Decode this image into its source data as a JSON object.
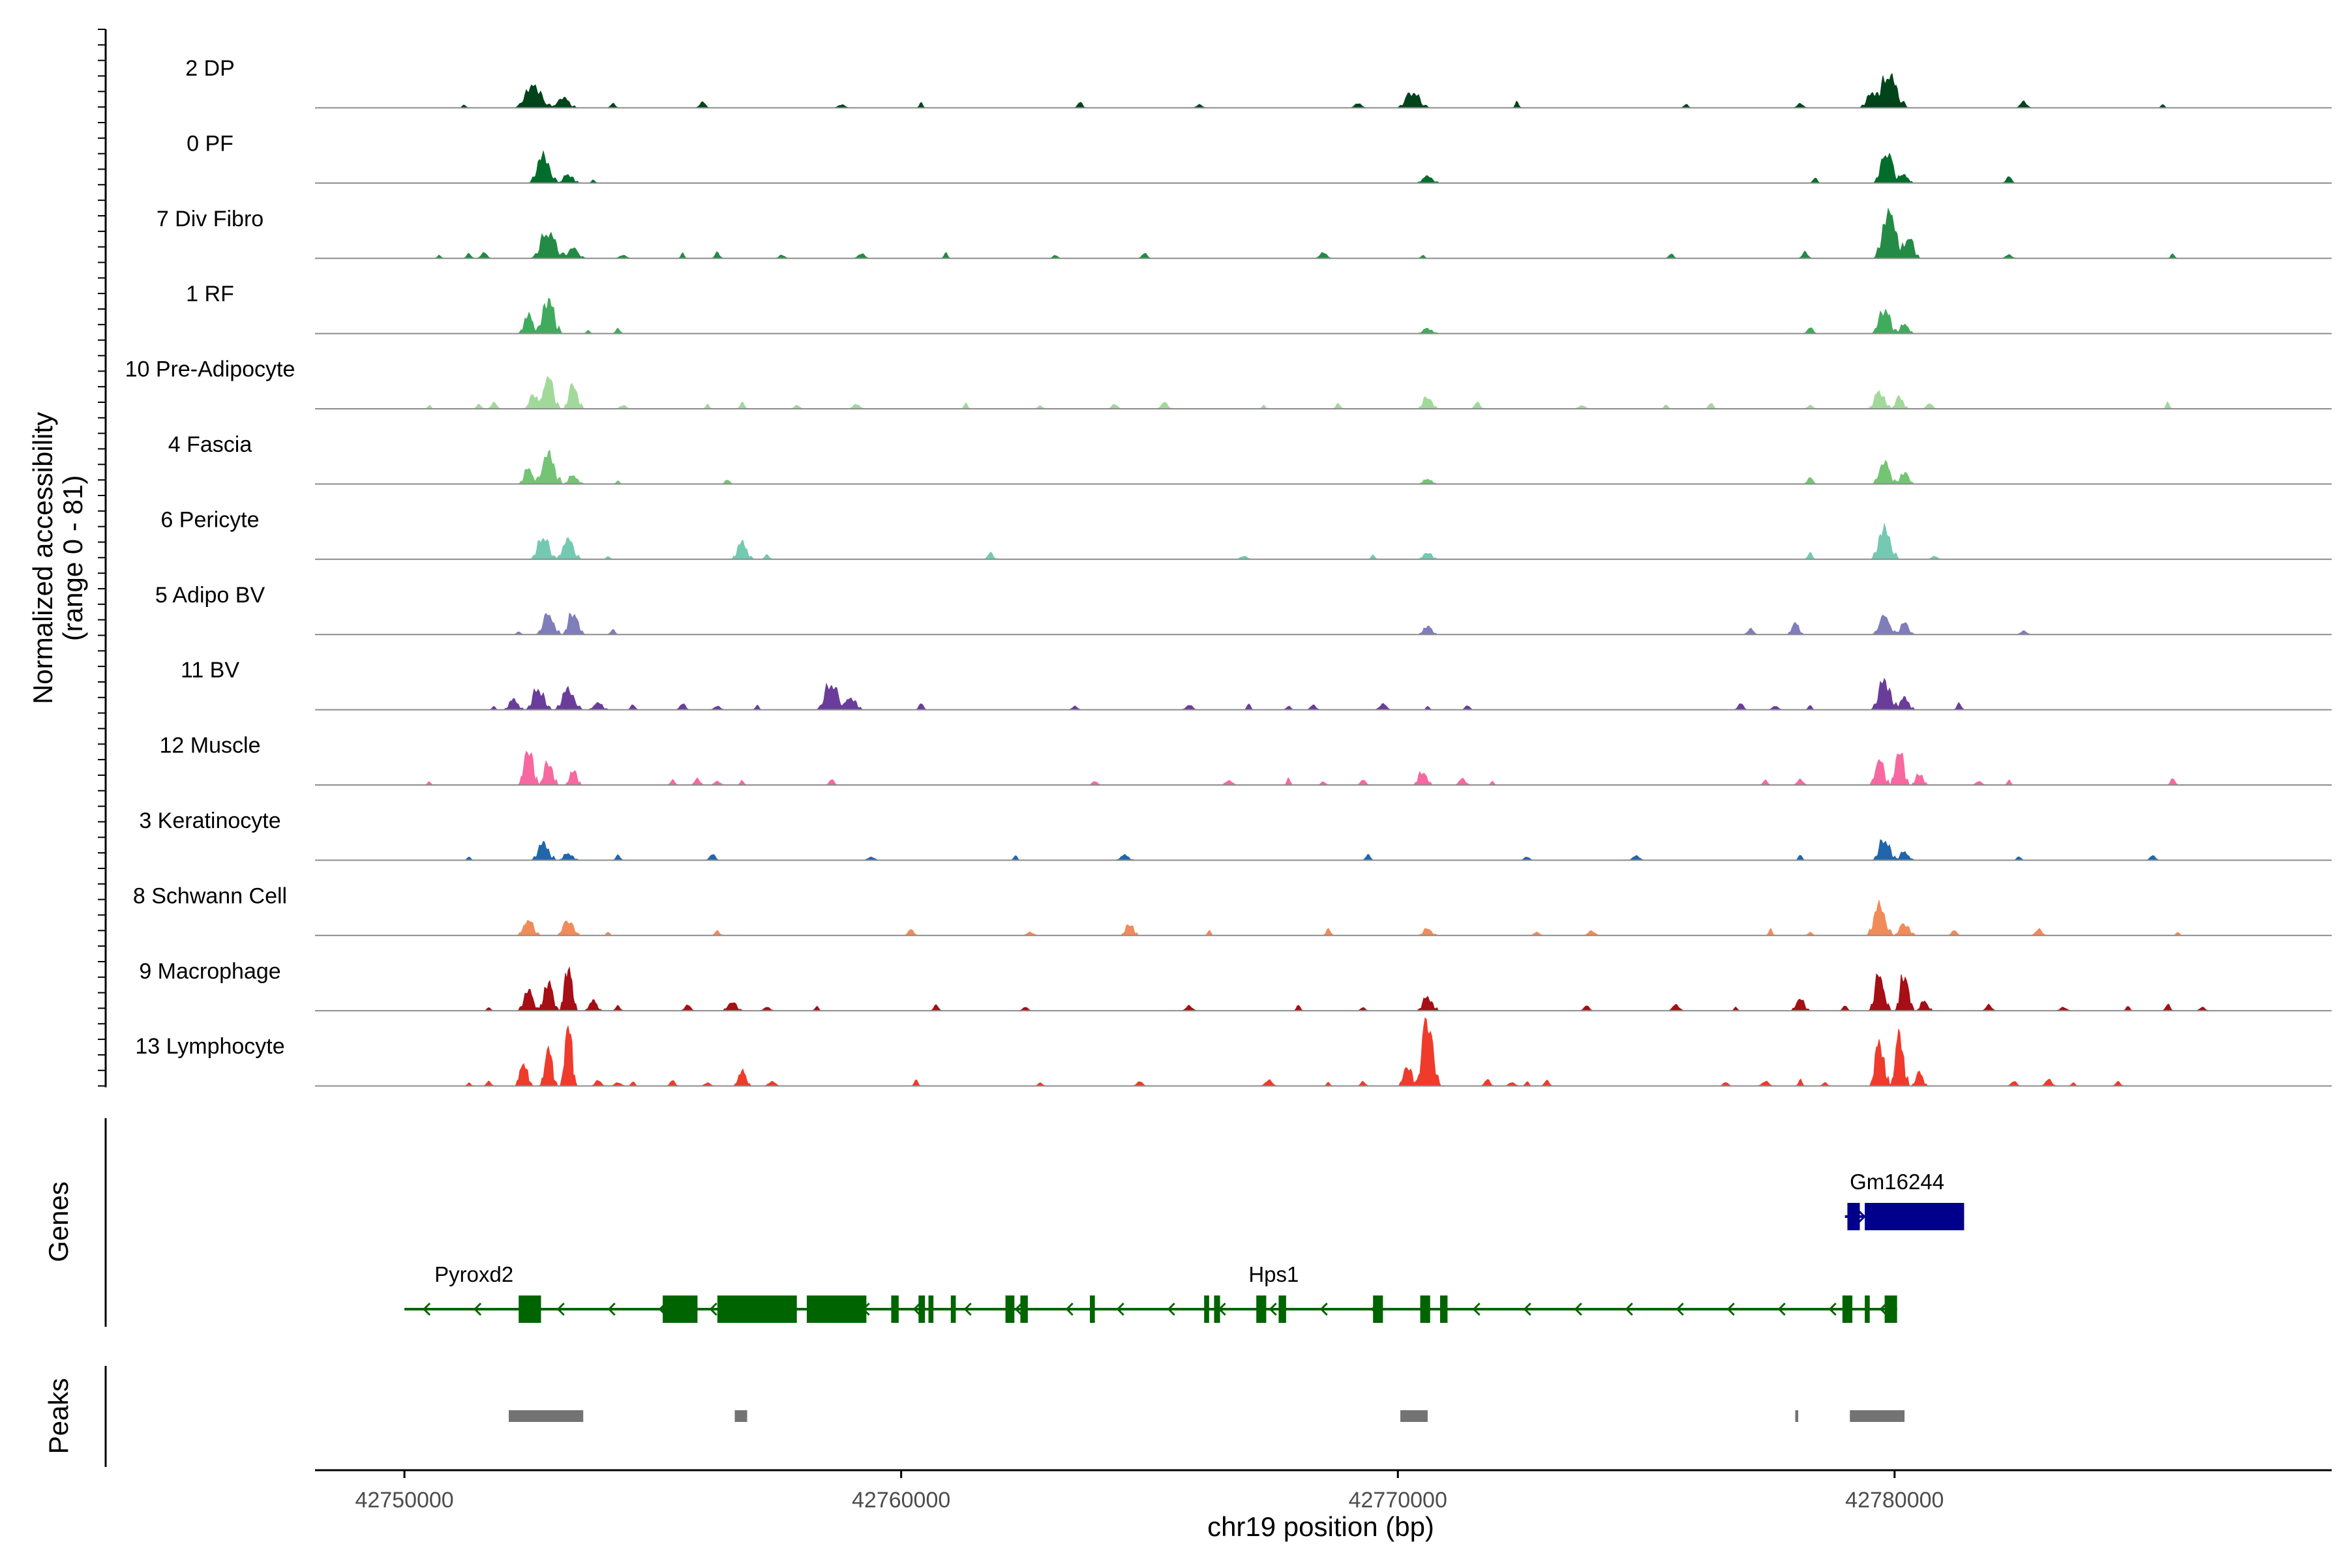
{
  "chart_data": {
    "type": "area",
    "description_free": true,
    "y_axis_label_line1": "Normalized accessibility",
    "y_axis_label_line2": "(range 0 - 81)",
    "y_range": [
      0,
      81
    ],
    "x_axis_label": "chr19 position (bp)",
    "x_range": [
      42748200,
      42788800
    ],
    "x_ticks": [
      42750000,
      42760000,
      42770000,
      42780000
    ],
    "x_tick_labels": [
      "42750000",
      "42760000",
      "42770000",
      "42780000"
    ],
    "genes_panel_label": "Genes",
    "peaks_panel_label": "Peaks",
    "series": [
      {
        "name": "2 DP",
        "color": "#00441B",
        "peaks": [
          [
            42752600,
            13,
            260
          ],
          [
            42753200,
            6,
            180
          ],
          [
            42770300,
            9,
            220
          ],
          [
            42779900,
            19,
            240
          ],
          [
            42779550,
            8,
            180
          ]
        ],
        "bumps": [
          42751200,
          42754200,
          42756000,
          42758800,
          42760400,
          42763600,
          42766000,
          42769200,
          42772400,
          42775800,
          42778100,
          42782600,
          42785400
        ]
      },
      {
        "name": "0 PF",
        "color": "#006D2C",
        "peaks": [
          [
            42752800,
            16,
            200
          ],
          [
            42753300,
            5,
            150
          ],
          [
            42770600,
            4,
            160
          ],
          [
            42779850,
            18,
            190
          ],
          [
            42780200,
            5,
            120
          ]
        ],
        "bumps": [
          42753800,
          42778400,
          42782300
        ]
      },
      {
        "name": "7 Div Fibro",
        "color": "#238B45",
        "peaks": [
          [
            42752900,
            15,
            240
          ],
          [
            42753400,
            6,
            160
          ],
          [
            42779900,
            27,
            220
          ],
          [
            42780300,
            12,
            140
          ]
        ],
        "bumps": [
          42750700,
          42751300,
          42751600,
          42754400,
          42755600,
          42756300,
          42757600,
          42759200,
          42760900,
          42763100,
          42764900,
          42768500,
          42770500,
          42775500,
          42778200,
          42782300,
          42785600
        ]
      },
      {
        "name": "1 RF",
        "color": "#41AB5D",
        "peaks": [
          [
            42752900,
            20,
            180
          ],
          [
            42752500,
            11,
            140
          ],
          [
            42770600,
            3,
            140
          ],
          [
            42779800,
            14,
            180
          ],
          [
            42780200,
            6,
            120
          ]
        ],
        "bumps": [
          42753700,
          42754300,
          42778300
        ]
      },
      {
        "name": "10 Pre-Adipocyte",
        "color": "#A1D99B",
        "peaks": [
          [
            42752900,
            19,
            160
          ],
          [
            42753400,
            14,
            140
          ],
          [
            42752600,
            9,
            120
          ],
          [
            42770600,
            7,
            140
          ],
          [
            42779700,
            10,
            160
          ],
          [
            42780100,
            7,
            120
          ]
        ],
        "bumps": [
          42750500,
          42751500,
          42751800,
          42754400,
          42756100,
          42756800,
          42757900,
          42759100,
          42761300,
          42762800,
          42764300,
          42765300,
          42767300,
          42768800,
          42771600,
          42773700,
          42775400,
          42776300,
          42778300,
          42780700,
          42785500
        ]
      },
      {
        "name": "4 Fascia",
        "color": "#74C476",
        "peaks": [
          [
            42752900,
            18,
            190
          ],
          [
            42752500,
            9,
            140
          ],
          [
            42753400,
            5,
            140
          ],
          [
            42770600,
            3,
            130
          ],
          [
            42779800,
            13,
            170
          ],
          [
            42780200,
            7,
            130
          ]
        ],
        "bumps": [
          42754300,
          42756500,
          42778300
        ]
      },
      {
        "name": "6 Pericyte",
        "color": "#74C9B3",
        "peaks": [
          [
            42752800,
            13,
            180
          ],
          [
            42753300,
            12,
            170
          ],
          [
            42756800,
            10,
            150
          ],
          [
            42770600,
            4,
            130
          ],
          [
            42779800,
            18,
            190
          ]
        ],
        "bumps": [
          42754100,
          42757300,
          42761800,
          42766900,
          42769500,
          42778300,
          42780800
        ]
      },
      {
        "name": "5 Adipo BV",
        "color": "#807DBA",
        "peaks": [
          [
            42752900,
            12,
            170
          ],
          [
            42753400,
            13,
            150
          ],
          [
            42770600,
            5,
            130
          ],
          [
            42778000,
            7,
            110
          ],
          [
            42779800,
            11,
            170
          ],
          [
            42780200,
            7,
            130
          ]
        ],
        "bumps": [
          42752300,
          42754200,
          42777100,
          42782600
        ]
      },
      {
        "name": "11 BV",
        "color": "#6A3D9A",
        "peaks": [
          [
            42752700,
            12,
            180
          ],
          [
            42753300,
            12,
            190
          ],
          [
            42752200,
            6,
            140
          ],
          [
            42753900,
            4,
            140
          ],
          [
            42758600,
            15,
            210
          ],
          [
            42759000,
            7,
            150
          ],
          [
            42779800,
            17,
            190
          ],
          [
            42780200,
            7,
            140
          ]
        ],
        "bumps": [
          42751800,
          42754600,
          42755600,
          42756300,
          42757100,
          42760400,
          42763500,
          42765800,
          42767000,
          42767800,
          42768300,
          42769700,
          42770600,
          42771400,
          42776900,
          42777600,
          42778300,
          42781300
        ]
      },
      {
        "name": "12 Muscle",
        "color": "#F768A1",
        "peaks": [
          [
            42752500,
            22,
            140
          ],
          [
            42752900,
            14,
            130
          ],
          [
            42753400,
            9,
            110
          ],
          [
            42770500,
            8,
            130
          ],
          [
            42779700,
            15,
            140
          ],
          [
            42780100,
            21,
            130
          ],
          [
            42780500,
            7,
            110
          ]
        ],
        "bumps": [
          42750500,
          42755400,
          42755900,
          42756300,
          42756800,
          42758600,
          42763900,
          42766600,
          42767800,
          42768500,
          42769300,
          42771300,
          42771900,
          42777400,
          42778100,
          42781700,
          42782300,
          42785600
        ]
      },
      {
        "name": "3 Keratinocyte",
        "color": "#2166AC",
        "peaks": [
          [
            42752800,
            10,
            170
          ],
          [
            42753300,
            4,
            140
          ],
          [
            42764500,
            3,
            130
          ],
          [
            42779800,
            12,
            170
          ],
          [
            42780200,
            5,
            130
          ]
        ],
        "bumps": [
          42751300,
          42754300,
          42756200,
          42759400,
          42762300,
          42769400,
          42772600,
          42774800,
          42778100,
          42782500,
          42785200
        ]
      },
      {
        "name": "8 Schwann Cell",
        "color": "#F08B5A",
        "peaks": [
          [
            42752500,
            9,
            160
          ],
          [
            42753300,
            9,
            160
          ],
          [
            42764600,
            7,
            120
          ],
          [
            42770600,
            4,
            130
          ],
          [
            42779700,
            18,
            180
          ],
          [
            42780200,
            7,
            150
          ]
        ],
        "bumps": [
          42754100,
          42756300,
          42760200,
          42762600,
          42766200,
          42768600,
          42772800,
          42773900,
          42777500,
          42778300,
          42781200,
          42782900,
          42785700
        ]
      },
      {
        "name": "9 Macrophage",
        "color": "#A50F15",
        "peaks": [
          [
            42752500,
            12,
            150
          ],
          [
            42752900,
            17,
            140
          ],
          [
            42753300,
            27,
            120
          ],
          [
            42753800,
            6,
            120
          ],
          [
            42756600,
            5,
            140
          ],
          [
            42770600,
            8,
            150
          ],
          [
            42778100,
            7,
            130
          ],
          [
            42779700,
            21,
            150
          ],
          [
            42780200,
            22,
            130
          ],
          [
            42780600,
            6,
            110
          ]
        ],
        "bumps": [
          42751700,
          42754300,
          42755700,
          42757300,
          42758300,
          42760700,
          42762500,
          42765800,
          42768000,
          42769300,
          42773800,
          42775600,
          42776800,
          42779000,
          42781900,
          42783400,
          42784700,
          42785500,
          42786200
        ]
      },
      {
        "name": "13 Lymphocyte",
        "color": "#EF3B2C",
        "peaks": [
          [
            42752400,
            14,
            120
          ],
          [
            42752900,
            22,
            120
          ],
          [
            42753300,
            38,
            110
          ],
          [
            42756800,
            9,
            120
          ],
          [
            42770600,
            40,
            170
          ],
          [
            42770200,
            12,
            130
          ],
          [
            42779700,
            26,
            140
          ],
          [
            42780100,
            30,
            130
          ],
          [
            42780500,
            8,
            110
          ]
        ],
        "bumps": [
          42751300,
          42751700,
          42753900,
          42754300,
          42754600,
          42755400,
          42756100,
          42757400,
          42760300,
          42762800,
          42764800,
          42767400,
          42768600,
          42769300,
          42771800,
          42772300,
          42772600,
          42773000,
          42776600,
          42777400,
          42778100,
          42778600,
          42782400,
          42783100,
          42783600,
          42784500
        ]
      }
    ],
    "genes": [
      {
        "name": "Gm16244",
        "color": "#00008B",
        "start": 42779000,
        "end": 42781400,
        "strand": "+",
        "exons": [
          [
            42779050,
            42779300
          ],
          [
            42779400,
            42781400
          ]
        ]
      },
      {
        "name": "Pyroxd2",
        "color": "#006400",
        "start": 42750000,
        "end": 42752700,
        "strand": "-",
        "exons": [
          [
            42752300,
            42752750
          ]
        ]
      },
      {
        "name": "Hps1",
        "color": "#006400",
        "start": 42752700,
        "end": 42780050,
        "strand": "-",
        "exons": [
          [
            42755200,
            42755900
          ],
          [
            42756300,
            42757900
          ],
          [
            42758100,
            42759300
          ],
          [
            42759800,
            42759950
          ],
          [
            42760350,
            42760480
          ],
          [
            42760550,
            42760650
          ],
          [
            42761000,
            42761100
          ],
          [
            42762100,
            42762280
          ],
          [
            42762400,
            42762550
          ],
          [
            42763800,
            42763900
          ],
          [
            42766100,
            42766200
          ],
          [
            42766300,
            42766420
          ],
          [
            42767150,
            42767350
          ],
          [
            42767600,
            42767750
          ],
          [
            42769500,
            42769700
          ],
          [
            42770450,
            42770650
          ],
          [
            42770850,
            42771000
          ],
          [
            42778950,
            42779150
          ],
          [
            42779400,
            42779500
          ],
          [
            42779800,
            42780050
          ]
        ]
      }
    ],
    "peak_regions": [
      [
        42752100,
        42753600
      ],
      [
        42756650,
        42756900
      ],
      [
        42770050,
        42770600
      ],
      [
        42778000,
        42778060
      ],
      [
        42779100,
        42780200
      ]
    ]
  }
}
